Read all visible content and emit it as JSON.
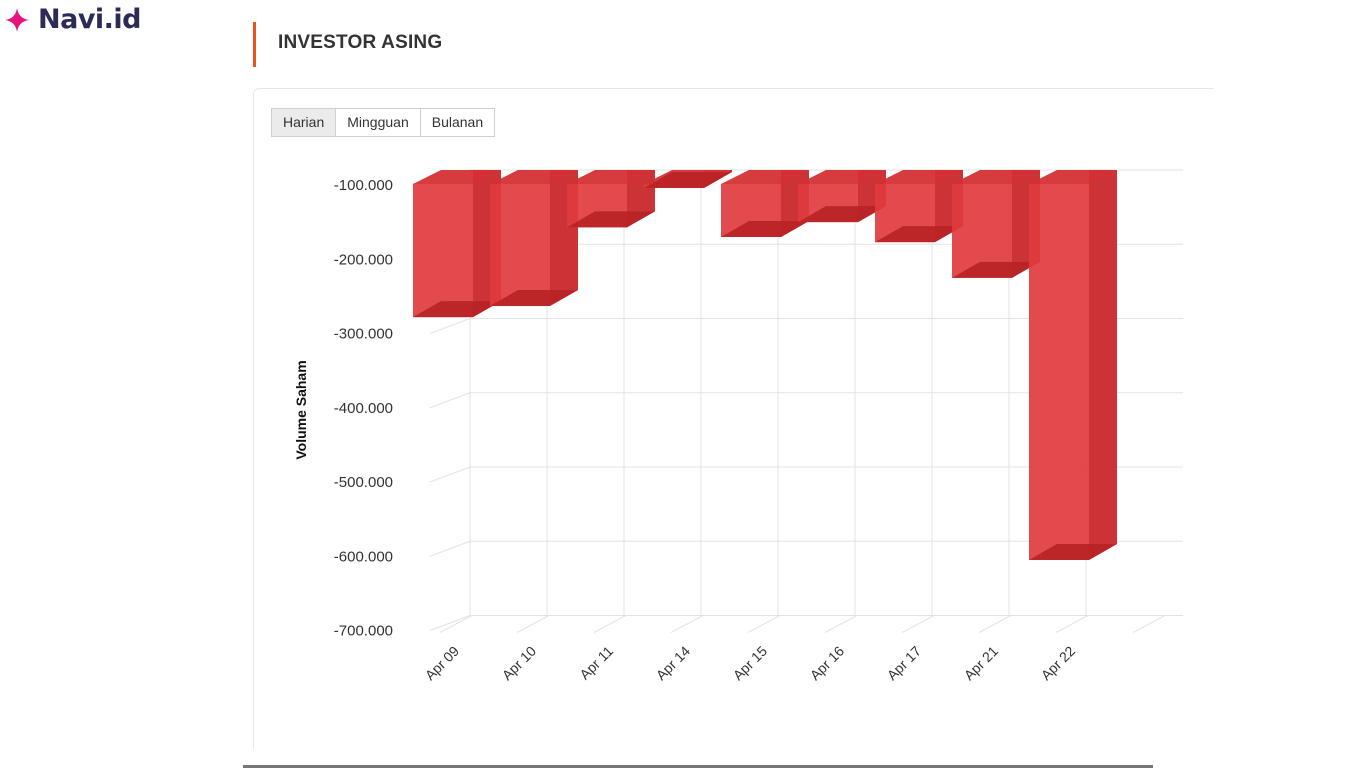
{
  "brand": {
    "name": "Navi.id",
    "logo_icon": "sparkle-icon",
    "logo_color": "#e7157b"
  },
  "section": {
    "title": "INVESTOR ASING",
    "accent_color": "#e8541e"
  },
  "tabs": [
    {
      "label": "Harian",
      "active": true
    },
    {
      "label": "Mingguan",
      "active": false
    },
    {
      "label": "Bulanan",
      "active": false
    }
  ],
  "chart_data": {
    "type": "bar",
    "style": "3d",
    "ylabel": "Volume Saham",
    "xlabel": "",
    "ylim": [
      -700000,
      -80000
    ],
    "grid": true,
    "bar_color": "#e03b3e",
    "y_ticks": [
      "-100.000",
      "-200.000",
      "-300.000",
      "-400.000",
      "-500.000",
      "-600.000",
      "-700.000"
    ],
    "y_tick_values": [
      -100000,
      -200000,
      -300000,
      -400000,
      -500000,
      -600000,
      -700000
    ],
    "categories": [
      "Apr 09",
      "Apr 10",
      "Apr 11",
      "Apr 14",
      "Apr 15",
      "Apr 16",
      "Apr 17",
      "Apr 21",
      "Apr 22"
    ],
    "values": [
      -278000,
      -263000,
      -157000,
      -104000,
      -170000,
      -150000,
      -177000,
      -225000,
      -605000
    ]
  }
}
